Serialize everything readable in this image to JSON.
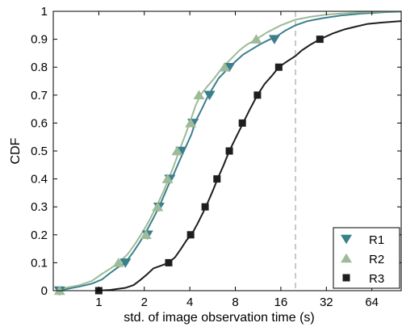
{
  "chart_data": {
    "type": "line",
    "xlabel": "std. of image observation time (s)",
    "ylabel": "CDF",
    "x_scale": "log2",
    "xlim": [
      0.5,
      100
    ],
    "ylim": [
      0,
      1
    ],
    "x_ticks": [
      1,
      2,
      4,
      8,
      16,
      32,
      64
    ],
    "x_tick_labels": [
      "1",
      "2",
      "4",
      "8",
      "16",
      "32",
      "64"
    ],
    "y_ticks": [
      0,
      0.1,
      0.2,
      0.3,
      0.4,
      0.5,
      0.6,
      0.7,
      0.8,
      0.9,
      1
    ],
    "y_tick_labels": [
      "0",
      "0.1",
      "0.2",
      "0.3",
      "0.4",
      "0.5",
      "0.6",
      "0.7",
      "0.8",
      "0.9",
      "1"
    ],
    "grid": false,
    "legend_position": "bottom-right",
    "reference_line": {
      "x": 20,
      "style": "dashed",
      "color": "#c8c8c8"
    },
    "series": [
      {
        "name": "R1",
        "color": "#3a7f8c",
        "marker": "triangle-down",
        "line_points": [
          [
            0.55,
            0
          ],
          [
            0.6,
            0.005
          ],
          [
            0.75,
            0.015
          ],
          [
            0.9,
            0.025
          ],
          [
            1.05,
            0.04
          ],
          [
            1.2,
            0.065
          ],
          [
            1.35,
            0.085
          ],
          [
            1.5,
            0.1
          ],
          [
            1.7,
            0.14
          ],
          [
            1.9,
            0.18
          ],
          [
            2.1,
            0.22
          ],
          [
            2.35,
            0.27
          ],
          [
            2.6,
            0.32
          ],
          [
            2.9,
            0.38
          ],
          [
            3.15,
            0.42
          ],
          [
            3.45,
            0.47
          ],
          [
            3.8,
            0.52
          ],
          [
            4.1,
            0.56
          ],
          [
            4.4,
            0.61
          ],
          [
            4.8,
            0.65
          ],
          [
            5.2,
            0.69
          ],
          [
            5.6,
            0.72
          ],
          [
            6.2,
            0.76
          ],
          [
            7,
            0.79
          ],
          [
            8,
            0.82
          ],
          [
            9,
            0.845
          ],
          [
            10,
            0.86
          ],
          [
            11.5,
            0.88
          ],
          [
            13,
            0.895
          ],
          [
            15,
            0.91
          ],
          [
            17,
            0.93
          ],
          [
            20,
            0.95
          ],
          [
            24,
            0.965
          ],
          [
            30,
            0.975
          ],
          [
            40,
            0.985
          ],
          [
            55,
            0.992
          ],
          [
            80,
            0.997
          ],
          [
            100,
            0.999
          ]
        ],
        "markers": [
          [
            0.55,
            0
          ],
          [
            1.5,
            0.1
          ],
          [
            2.1,
            0.2
          ],
          [
            2.5,
            0.3
          ],
          [
            2.95,
            0.4
          ],
          [
            3.5,
            0.5
          ],
          [
            4.2,
            0.6
          ],
          [
            5.4,
            0.7
          ],
          [
            7.3,
            0.8
          ],
          [
            14.5,
            0.9
          ]
        ]
      },
      {
        "name": "R2",
        "color": "#9dba99",
        "marker": "triangle-up",
        "line_points": [
          [
            0.55,
            0
          ],
          [
            0.6,
            0.01
          ],
          [
            0.75,
            0.02
          ],
          [
            0.9,
            0.035
          ],
          [
            1.05,
            0.06
          ],
          [
            1.2,
            0.08
          ],
          [
            1.35,
            0.1
          ],
          [
            1.55,
            0.13
          ],
          [
            1.75,
            0.17
          ],
          [
            1.95,
            0.21
          ],
          [
            2.15,
            0.25
          ],
          [
            2.4,
            0.3
          ],
          [
            2.65,
            0.35
          ],
          [
            2.9,
            0.4
          ],
          [
            3.15,
            0.45
          ],
          [
            3.4,
            0.5
          ],
          [
            3.75,
            0.56
          ],
          [
            4.05,
            0.61
          ],
          [
            4.35,
            0.66
          ],
          [
            4.7,
            0.7
          ],
          [
            5.2,
            0.73
          ],
          [
            5.8,
            0.76
          ],
          [
            6.6,
            0.8
          ],
          [
            7.5,
            0.83
          ],
          [
            8.5,
            0.86
          ],
          [
            9.5,
            0.88
          ],
          [
            11,
            0.9
          ],
          [
            13,
            0.925
          ],
          [
            16,
            0.95
          ],
          [
            20,
            0.97
          ],
          [
            25,
            0.98
          ],
          [
            32,
            0.988
          ],
          [
            45,
            0.994
          ],
          [
            64,
            0.998
          ],
          [
            100,
            1
          ]
        ],
        "markers": [
          [
            0.55,
            0
          ],
          [
            1.35,
            0.1
          ],
          [
            2.05,
            0.2
          ],
          [
            2.45,
            0.3
          ],
          [
            2.85,
            0.4
          ],
          [
            3.3,
            0.5
          ],
          [
            4.05,
            0.6
          ],
          [
            4.6,
            0.7
          ],
          [
            6.8,
            0.8
          ],
          [
            11,
            0.9
          ]
        ]
      },
      {
        "name": "R3",
        "color": "#1e1e1e",
        "marker": "square",
        "line_points": [
          [
            1,
            0
          ],
          [
            1.2,
            0.003
          ],
          [
            1.5,
            0.01
          ],
          [
            1.7,
            0.02
          ],
          [
            1.9,
            0.04
          ],
          [
            2.1,
            0.06
          ],
          [
            2.3,
            0.08
          ],
          [
            2.6,
            0.09
          ],
          [
            2.9,
            0.1
          ],
          [
            3.2,
            0.12
          ],
          [
            3.5,
            0.15
          ],
          [
            3.8,
            0.18
          ],
          [
            4.1,
            0.2
          ],
          [
            4.5,
            0.24
          ],
          [
            4.9,
            0.28
          ],
          [
            5.3,
            0.32
          ],
          [
            5.7,
            0.36
          ],
          [
            6.1,
            0.4
          ],
          [
            6.7,
            0.45
          ],
          [
            7.3,
            0.5
          ],
          [
            8.1,
            0.55
          ],
          [
            9,
            0.6
          ],
          [
            10,
            0.65
          ],
          [
            11.2,
            0.7
          ],
          [
            12.5,
            0.74
          ],
          [
            14,
            0.77
          ],
          [
            15.5,
            0.8
          ],
          [
            17.5,
            0.82
          ],
          [
            20,
            0.84
          ],
          [
            22,
            0.86
          ],
          [
            25,
            0.88
          ],
          [
            29,
            0.9
          ],
          [
            35,
            0.92
          ],
          [
            42,
            0.935
          ],
          [
            50,
            0.945
          ],
          [
            60,
            0.955
          ],
          [
            75,
            0.96
          ],
          [
            100,
            0.965
          ]
        ],
        "markers": [
          [
            1,
            0
          ],
          [
            2.9,
            0.1
          ],
          [
            4.05,
            0.2
          ],
          [
            5.05,
            0.3
          ],
          [
            6.05,
            0.4
          ],
          [
            7.3,
            0.5
          ],
          [
            8.9,
            0.6
          ],
          [
            11.2,
            0.7
          ],
          [
            15.5,
            0.8
          ],
          [
            29,
            0.9
          ]
        ]
      }
    ]
  }
}
